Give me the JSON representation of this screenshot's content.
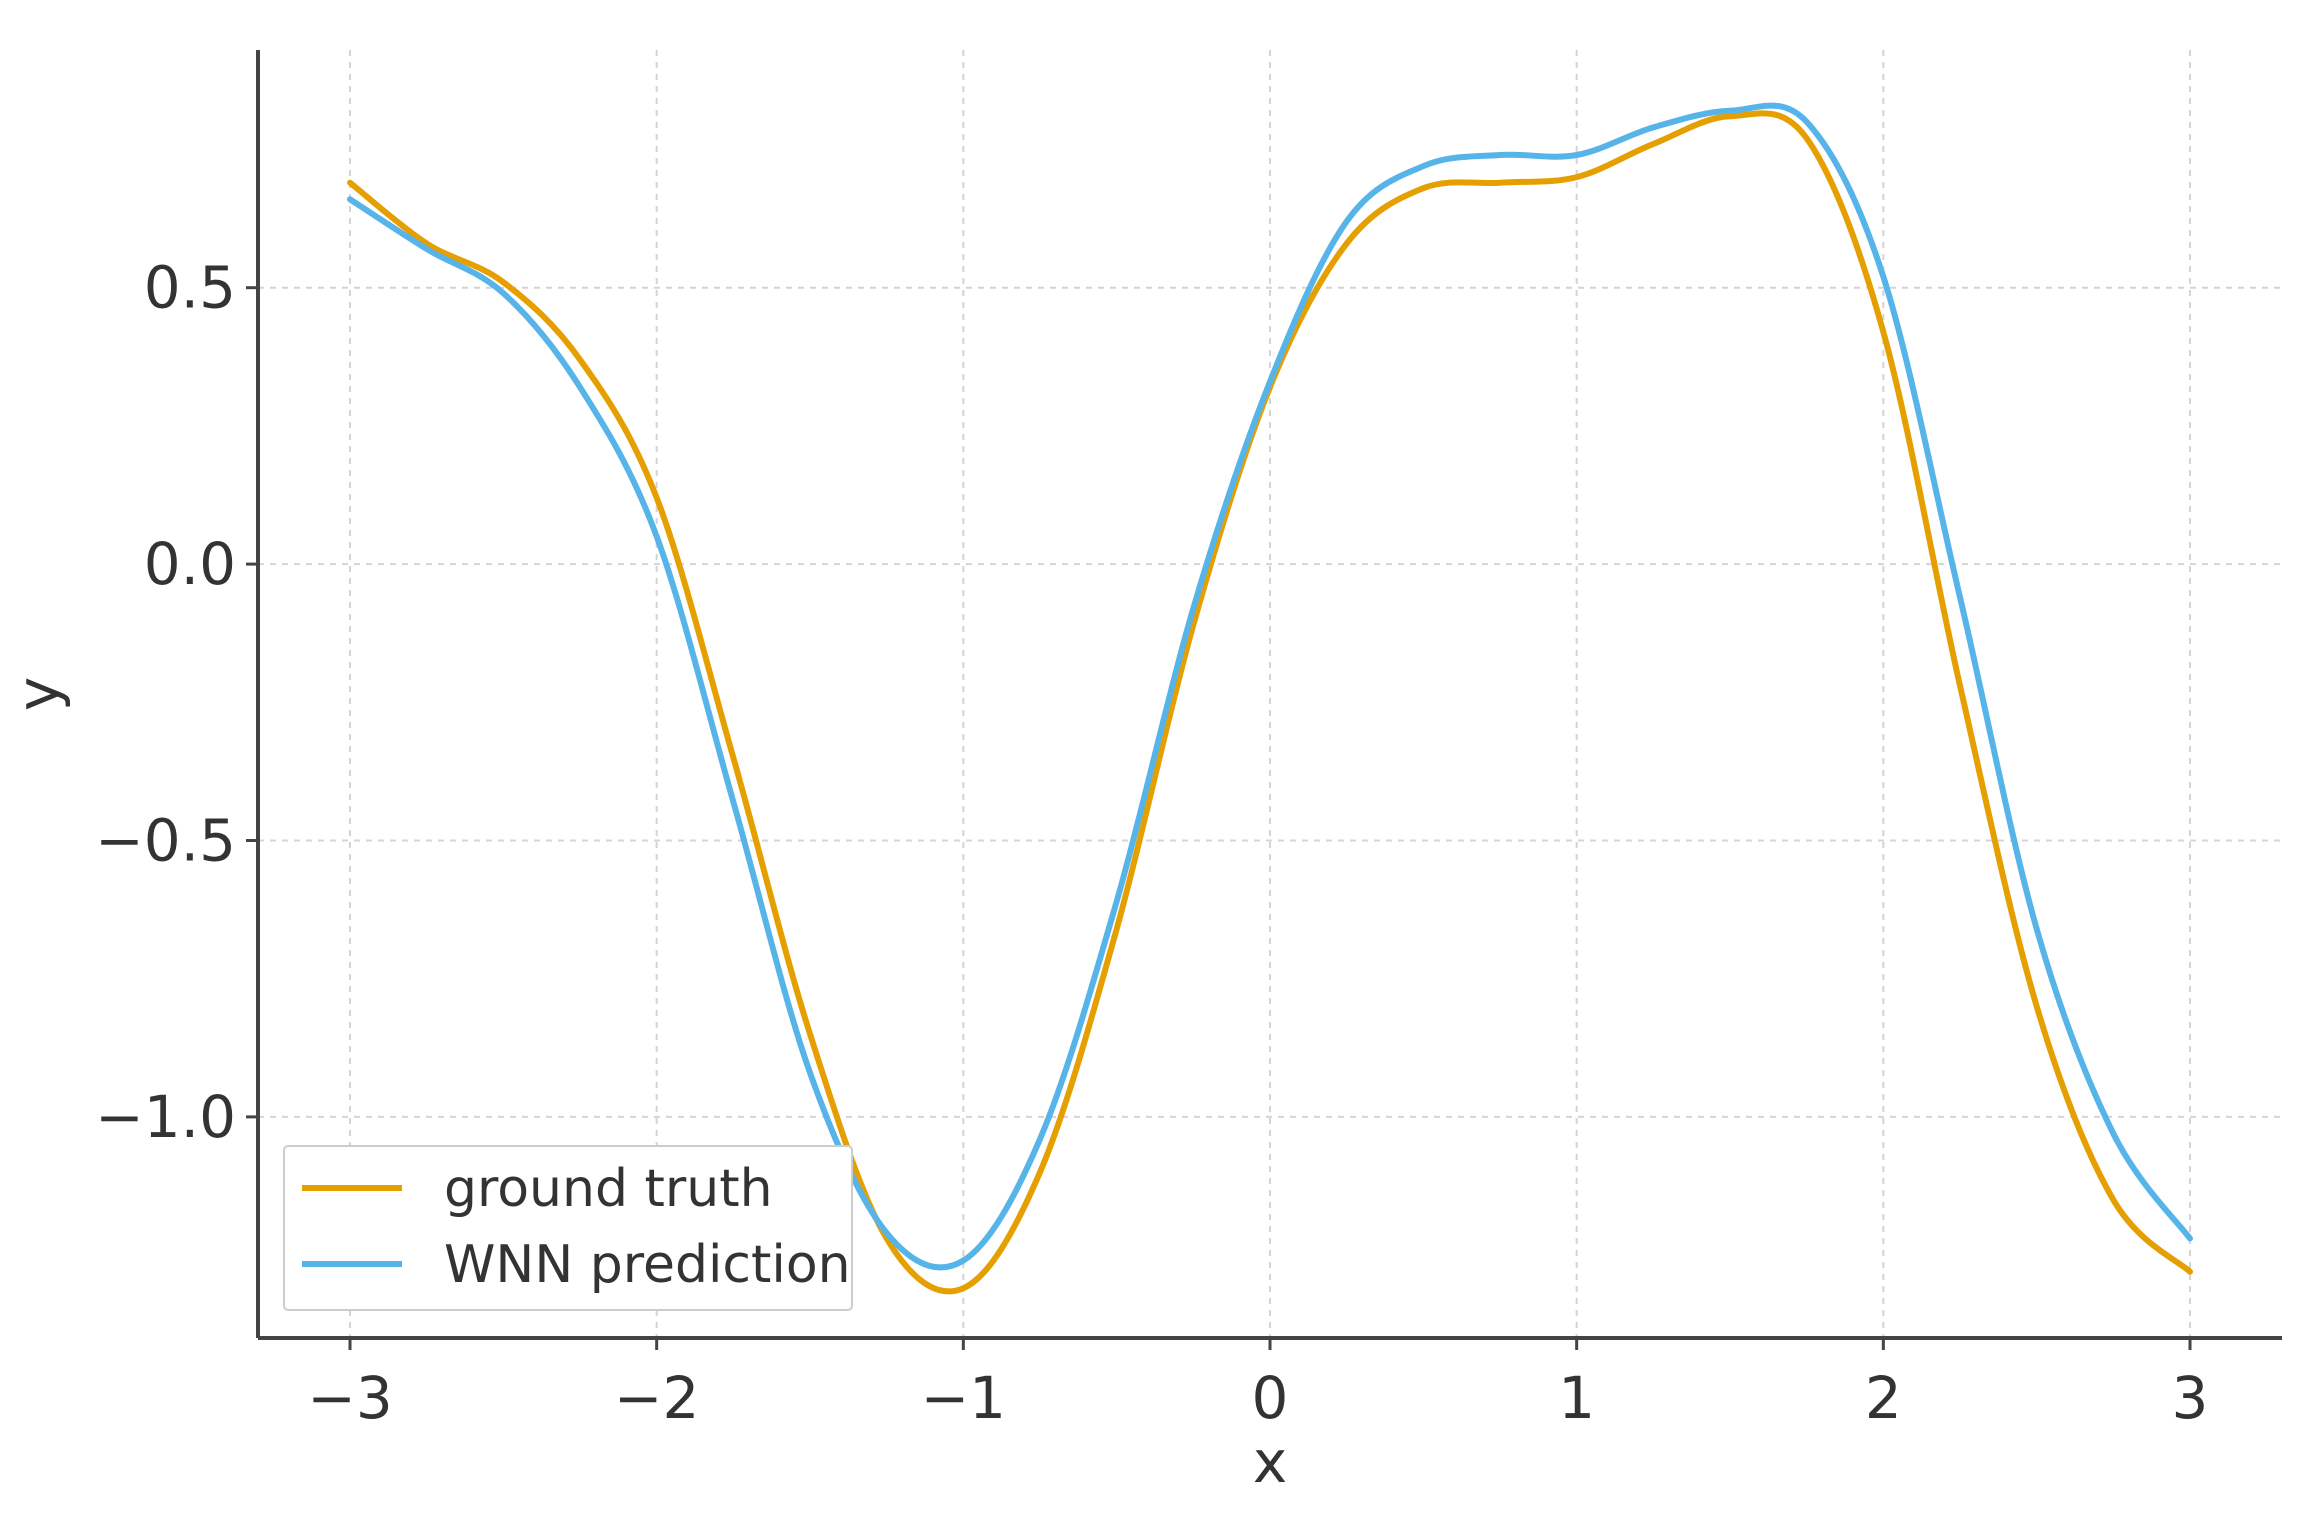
{
  "chart_data": {
    "type": "line",
    "title": "",
    "xlabel": "x",
    "ylabel": "y",
    "xlim": [
      -3.3,
      3.3
    ],
    "ylim": [
      -1.4,
      0.93
    ],
    "xticks": [
      -3,
      -2,
      -1,
      0,
      1,
      2,
      3
    ],
    "xtick_labels": [
      "−3",
      "−2",
      "−1",
      "0",
      "1",
      "2",
      "3"
    ],
    "yticks": [
      -1.0,
      -0.5,
      0.0,
      0.5
    ],
    "ytick_labels": [
      "−1.0",
      "−0.5",
      "0.0",
      "0.5"
    ],
    "grid": true,
    "legend_position": "lower-left",
    "series": [
      {
        "name": "ground truth",
        "color": "#E69F00",
        "x": [
          -3.0,
          -2.75,
          -2.5,
          -2.25,
          -2.0,
          -1.75,
          -1.5,
          -1.25,
          -1.0,
          -0.75,
          -0.5,
          -0.25,
          0.0,
          0.25,
          0.5,
          0.75,
          1.0,
          1.25,
          1.5,
          1.75,
          2.0,
          2.25,
          2.5,
          2.75,
          3.0
        ],
        "y": [
          0.69,
          0.58,
          0.51,
          0.37,
          0.12,
          -0.35,
          -0.85,
          -1.22,
          -1.31,
          -1.1,
          -0.66,
          -0.11,
          0.32,
          0.58,
          0.68,
          0.69,
          0.7,
          0.76,
          0.81,
          0.77,
          0.42,
          -0.22,
          -0.8,
          -1.15,
          -1.28
        ]
      },
      {
        "name": "WNN prediction",
        "color": "#56B4E9",
        "x": [
          -3.0,
          -2.75,
          -2.5,
          -2.25,
          -2.0,
          -1.75,
          -1.5,
          -1.25,
          -1.0,
          -0.75,
          -0.5,
          -0.25,
          0.0,
          0.25,
          0.5,
          0.75,
          1.0,
          1.25,
          1.5,
          1.75,
          2.0,
          2.25,
          2.5,
          2.75,
          3.0
        ],
        "y": [
          0.66,
          0.57,
          0.49,
          0.32,
          0.05,
          -0.43,
          -0.92,
          -1.21,
          -1.26,
          -1.04,
          -0.61,
          -0.08,
          0.33,
          0.62,
          0.72,
          0.74,
          0.74,
          0.79,
          0.82,
          0.8,
          0.52,
          -0.06,
          -0.66,
          -1.03,
          -1.22
        ]
      }
    ]
  }
}
